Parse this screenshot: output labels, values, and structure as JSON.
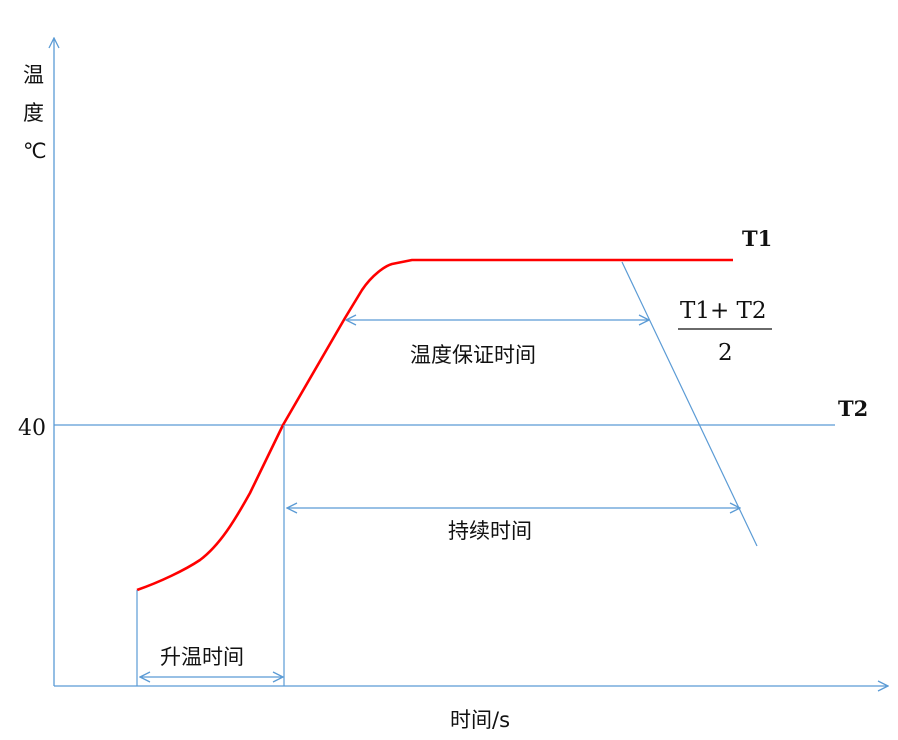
{
  "y_axis": {
    "label_line1": "温",
    "label_line2": "度",
    "label_line3": "℃",
    "tick_40": "40"
  },
  "x_axis": {
    "label": "时间/s"
  },
  "labels": {
    "t1": "T1",
    "t2": "T2",
    "fraction_numerator": "T1+ T2",
    "fraction_denominator": "2",
    "guarantee_time": "温度保证时间",
    "duration_time": "持续时间",
    "heating_time": "升温时间"
  },
  "colors": {
    "curve": "#ff0000",
    "guides": "#5b9bd5"
  }
}
